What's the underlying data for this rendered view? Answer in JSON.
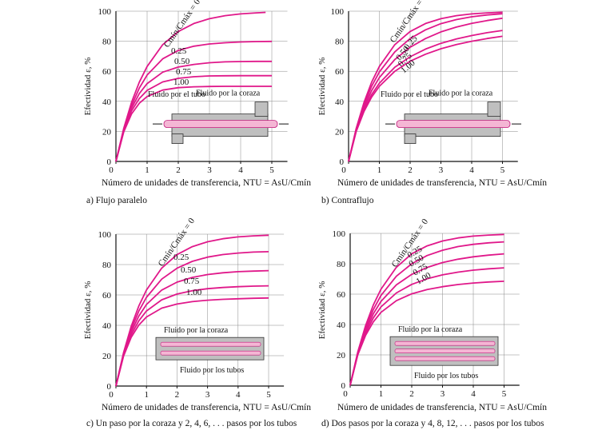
{
  "colors": {
    "curve": "#e0188a",
    "pipe": "#f4b6d4",
    "shell": "#bfbfbf",
    "axis": "#111111"
  },
  "chart_data": [
    {
      "panel_id": "a",
      "type": "line",
      "caption": "a) Flujo paralelo",
      "xlabel": "Número de unidades de transferencia, NTU = AsU/Cmín",
      "ylabel": "Efectividad ε, %",
      "xlim": [
        0,
        5.5
      ],
      "ylim": [
        0,
        100
      ],
      "xticks": [
        0,
        1,
        2,
        3,
        4,
        5
      ],
      "yticks": [
        0,
        20,
        40,
        60,
        80,
        100
      ],
      "series": [
        {
          "name": "Cmín/Cmáx = 0",
          "x": [
            0,
            0.25,
            0.5,
            0.75,
            1,
            1.5,
            2,
            2.5,
            3,
            3.5,
            4,
            4.5,
            4.8
          ],
          "y": [
            0,
            22.1,
            39.3,
            52.8,
            63.2,
            77.7,
            86.5,
            91.8,
            95.0,
            97.0,
            98.2,
            98.9,
            99.2
          ]
        },
        {
          "name": "0.25",
          "x": [
            0,
            0.25,
            0.5,
            0.75,
            1,
            1.5,
            2,
            2.5,
            3,
            3.5,
            4,
            4.5,
            5
          ],
          "y": [
            0,
            21.5,
            37.2,
            48.9,
            57.5,
            68.3,
            73.9,
            76.7,
            78.2,
            79.0,
            79.5,
            79.8,
            79.9
          ]
        },
        {
          "name": "0.50",
          "x": [
            0,
            0.25,
            0.5,
            0.75,
            1,
            1.5,
            2,
            2.5,
            3,
            3.5,
            4,
            4.5,
            5
          ],
          "y": [
            0,
            20.9,
            35.4,
            45.2,
            51.8,
            59.4,
            62.8,
            64.6,
            65.7,
            66.3,
            66.5,
            66.6,
            66.6
          ]
        },
        {
          "name": "0.75",
          "x": [
            0,
            0.25,
            0.5,
            0.75,
            1,
            1.5,
            2,
            2.5,
            3,
            3.5,
            4,
            4.5,
            5
          ],
          "y": [
            0,
            20.3,
            33.6,
            41.9,
            47.3,
            52.9,
            55.3,
            56.4,
            56.9,
            57.0,
            57.1,
            57.1,
            57.1
          ]
        },
        {
          "name": "1.00",
          "x": [
            0,
            0.25,
            0.5,
            0.75,
            1,
            1.5,
            2,
            2.5,
            3,
            3.5,
            4,
            4.5,
            5
          ],
          "y": [
            0,
            19.7,
            31.6,
            38.8,
            43.2,
            47.5,
            49.1,
            49.7,
            49.9,
            50.0,
            50.0,
            50.0,
            50.0
          ]
        }
      ],
      "annotations": [
        "Fluido por el tubo",
        "Fluido por la coraza"
      ]
    },
    {
      "panel_id": "b",
      "type": "line",
      "caption": "b) Contraflujo",
      "xlabel": "Número de unidades de transferencia, NTU = AsU/Cmín",
      "ylabel": "Efectividad ε, %",
      "xlim": [
        0,
        5.5
      ],
      "ylim": [
        0,
        100
      ],
      "xticks": [
        0,
        1,
        2,
        3,
        4,
        5
      ],
      "yticks": [
        0,
        20,
        40,
        60,
        80,
        100
      ],
      "series": [
        {
          "name": "Cmín/Cmáx = 0",
          "x": [
            0,
            0.25,
            0.5,
            0.75,
            1,
            1.5,
            2,
            2.5,
            3,
            3.5,
            4,
            4.5,
            5
          ],
          "y": [
            0,
            22.1,
            39.3,
            52.8,
            63.2,
            77.7,
            86.5,
            91.8,
            95.0,
            97.0,
            98.2,
            98.9,
            99.3
          ]
        },
        {
          "name": "0.25",
          "x": [
            0,
            0.25,
            0.5,
            0.75,
            1,
            1.5,
            2,
            2.5,
            3,
            3.5,
            4,
            4.5,
            5
          ],
          "y": [
            0,
            21.7,
            37.8,
            50.1,
            59.5,
            72.9,
            81.8,
            87.6,
            91.7,
            94.4,
            96.3,
            97.5,
            98.3
          ]
        },
        {
          "name": "0.50",
          "x": [
            0,
            0.25,
            0.5,
            0.75,
            1,
            1.5,
            2,
            2.5,
            3,
            3.5,
            4,
            4.5,
            5
          ],
          "y": [
            0,
            21.3,
            36.1,
            47.2,
            55.8,
            67.8,
            76.0,
            81.8,
            86.2,
            89.4,
            91.9,
            93.8,
            95.3
          ]
        },
        {
          "name": "0.75",
          "x": [
            0,
            0.25,
            0.5,
            0.75,
            1,
            1.5,
            2,
            2.5,
            3,
            3.5,
            4,
            4.5,
            5
          ],
          "y": [
            0,
            20.9,
            34.5,
            44.6,
            52.1,
            62.7,
            69.7,
            74.8,
            78.6,
            81.5,
            83.8,
            85.7,
            87.2
          ]
        },
        {
          "name": "1.00",
          "x": [
            0,
            0.25,
            0.5,
            0.75,
            1,
            1.5,
            2,
            2.5,
            3,
            3.5,
            4,
            4.5,
            5
          ],
          "y": [
            0,
            20.0,
            33.3,
            42.9,
            50.0,
            60.0,
            66.7,
            71.4,
            75.0,
            77.8,
            80.0,
            81.8,
            83.3
          ]
        }
      ],
      "annotations": [
        "Fluido por el tubo",
        "Fluido por la coraza"
      ]
    },
    {
      "panel_id": "c",
      "type": "line",
      "caption": "c) Un paso por la coraza y 2, 4, 6, . . . pasos por los tubos",
      "xlabel": "Número de unidades de transferencia, NTU = AsU/Cmín",
      "ylabel": "Efectividad ε, %",
      "xlim": [
        0,
        5.5
      ],
      "ylim": [
        0,
        100
      ],
      "xticks": [
        0,
        1,
        2,
        3,
        4,
        5
      ],
      "yticks": [
        0,
        20,
        40,
        60,
        80,
        100
      ],
      "series": [
        {
          "name": "Cmín/Cmáx = 0",
          "x": [
            0,
            0.25,
            0.5,
            0.75,
            1,
            1.5,
            2,
            2.5,
            3,
            3.5,
            4,
            4.5,
            5
          ],
          "y": [
            0,
            22.1,
            39.3,
            52.8,
            63.2,
            77.7,
            86.5,
            91.8,
            95.0,
            97.0,
            98.2,
            98.9,
            99.3
          ]
        },
        {
          "name": "0.25",
          "x": [
            0,
            0.25,
            0.5,
            0.75,
            1,
            1.5,
            2,
            2.5,
            3,
            3.5,
            4,
            4.5,
            5
          ],
          "y": [
            0,
            21.5,
            37.4,
            49.4,
            58.4,
            70.4,
            77.6,
            82.1,
            84.9,
            86.6,
            87.6,
            88.2,
            88.5
          ]
        },
        {
          "name": "0.50",
          "x": [
            0,
            0.25,
            0.5,
            0.75,
            1,
            1.5,
            2,
            2.5,
            3,
            3.5,
            4,
            4.5,
            5
          ],
          "y": [
            0,
            21.0,
            35.6,
            46.1,
            53.7,
            63.2,
            68.4,
            71.5,
            73.4,
            74.6,
            75.3,
            75.7,
            76.0
          ]
        },
        {
          "name": "0.75",
          "x": [
            0,
            0.25,
            0.5,
            0.75,
            1,
            1.5,
            2,
            2.5,
            3,
            3.5,
            4,
            4.5,
            5
          ],
          "y": [
            0,
            20.4,
            33.8,
            43.0,
            49.4,
            56.8,
            60.6,
            62.8,
            64.1,
            64.9,
            65.4,
            65.8,
            66.0
          ]
        },
        {
          "name": "1.00",
          "x": [
            0,
            0.25,
            0.5,
            0.75,
            1,
            1.5,
            2,
            2.5,
            3,
            3.5,
            4,
            4.5,
            5
          ],
          "y": [
            0,
            19.8,
            32.1,
            40.2,
            45.5,
            51.3,
            54.0,
            55.6,
            56.5,
            57.1,
            57.5,
            57.8,
            58.0
          ]
        }
      ],
      "annotations": [
        "Fluido por la coraza",
        "Fluido por los tubos"
      ]
    },
    {
      "panel_id": "d",
      "type": "line",
      "caption": "d) Dos pasos por la coraza y 4, 8, 12, . . . pasos por los tubos",
      "xlabel": "Número de unidades de transferencia, NTU = AsU/Cmín",
      "ylabel": "Efectividad ε, %",
      "xlim": [
        0,
        5.5
      ],
      "ylim": [
        0,
        100
      ],
      "xticks": [
        0,
        1,
        2,
        3,
        4,
        5
      ],
      "yticks": [
        0,
        20,
        40,
        60,
        80,
        100
      ],
      "series": [
        {
          "name": "Cmín/Cmáx = 0",
          "x": [
            0,
            0.25,
            0.5,
            0.75,
            1,
            1.5,
            2,
            2.5,
            3,
            3.5,
            4,
            4.5,
            5
          ],
          "y": [
            0,
            22.1,
            39.3,
            52.8,
            63.2,
            77.7,
            86.5,
            91.8,
            95.0,
            97.0,
            98.2,
            98.9,
            99.3
          ]
        },
        {
          "name": "0.25",
          "x": [
            0,
            0.25,
            0.5,
            0.75,
            1,
            1.5,
            2,
            2.5,
            3,
            3.5,
            4,
            4.5,
            5
          ],
          "y": [
            0,
            21.6,
            37.6,
            49.8,
            59.1,
            71.8,
            80.0,
            85.4,
            88.9,
            91.3,
            92.8,
            93.8,
            94.4
          ]
        },
        {
          "name": "0.50",
          "x": [
            0,
            0.25,
            0.5,
            0.75,
            1,
            1.5,
            2,
            2.5,
            3,
            3.5,
            4,
            4.5,
            5
          ],
          "y": [
            0,
            21.1,
            35.9,
            47.0,
            55.2,
            66.1,
            73.0,
            77.6,
            80.8,
            83.0,
            84.6,
            85.7,
            86.5
          ]
        },
        {
          "name": "0.75",
          "x": [
            0,
            0.25,
            0.5,
            0.75,
            1,
            1.5,
            2,
            2.5,
            3,
            3.5,
            4,
            4.5,
            5
          ],
          "y": [
            0,
            20.6,
            34.3,
            44.3,
            51.6,
            60.8,
            66.4,
            70.1,
            72.7,
            74.5,
            75.8,
            76.7,
            77.3
          ]
        },
        {
          "name": "1.00",
          "x": [
            0,
            0.25,
            0.5,
            0.75,
            1,
            1.5,
            2,
            2.5,
            3,
            3.5,
            4,
            4.5,
            5
          ],
          "y": [
            0,
            20.1,
            32.9,
            41.7,
            48.0,
            55.7,
            60.2,
            63.0,
            64.9,
            66.3,
            67.3,
            68.0,
            68.5
          ]
        }
      ],
      "annotations": [
        "Fluido por la coraza",
        "Fluido por los tubos"
      ]
    }
  ]
}
